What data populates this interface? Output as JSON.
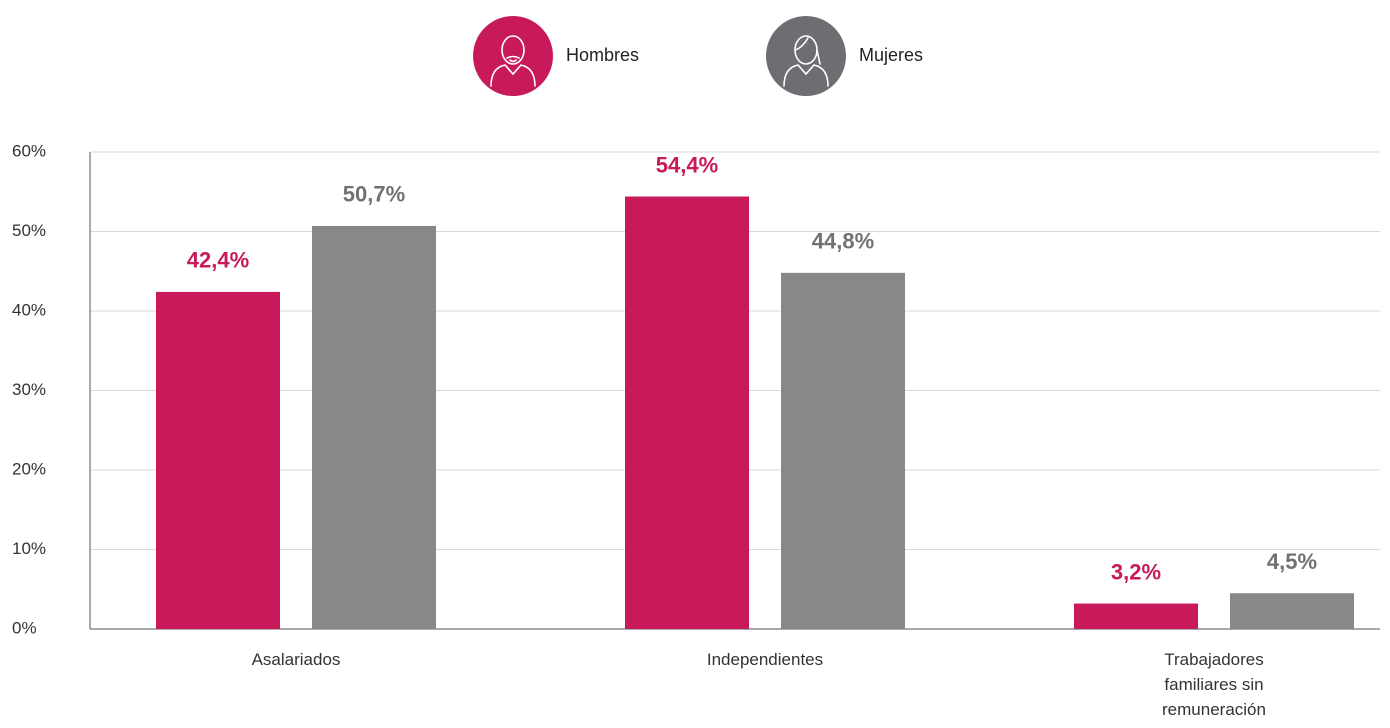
{
  "chart_data": {
    "type": "bar",
    "categories": [
      "Asalariados",
      "Independientes",
      "Trabajadores familiares sin remuneración"
    ],
    "series": [
      {
        "name": "Hombres",
        "color": "#c8195a",
        "values": [
          42.4,
          54.4,
          3.2
        ],
        "value_labels": [
          "42,4%",
          "54,4%",
          "3,2%"
        ]
      },
      {
        "name": "Mujeres",
        "color": "#878889",
        "values": [
          50.7,
          44.8,
          4.5
        ],
        "value_labels": [
          "50,7%",
          "44,8%",
          "4,5%"
        ]
      }
    ],
    "ylim": [
      0,
      60
    ],
    "yticks": [
      {
        "value": 0,
        "label": "0%"
      },
      {
        "value": 10,
        "label": "10%"
      },
      {
        "value": 20,
        "label": "20%"
      },
      {
        "value": 30,
        "label": "30%"
      },
      {
        "value": 40,
        "label": "40%"
      },
      {
        "value": 50,
        "label": "50%"
      },
      {
        "value": 60,
        "label": "60%"
      }
    ],
    "grid": true
  }
}
